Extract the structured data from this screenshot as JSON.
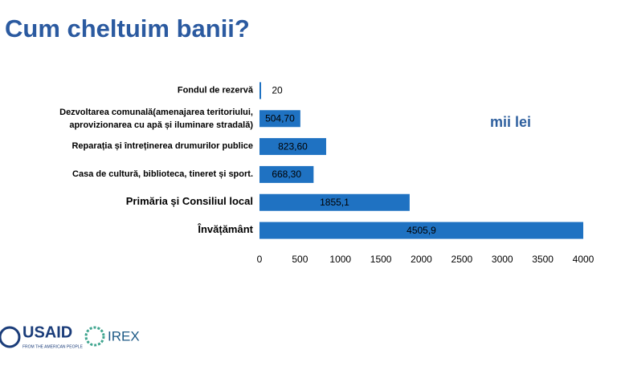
{
  "chart_data": {
    "type": "bar",
    "orientation": "horizontal",
    "title": "Cum cheltuim banii?",
    "categories": [
      "Fondul de rezervă",
      [
        "Dezvoltarea comunală(amenajarea  teritoriului,",
        "aprovizionarea  cu apă și iluminare stradală)"
      ],
      "Reparația și întreținerea drumurilor publice",
      "Casa de cultură, biblioteca,  tineret și sport.",
      "Primăria și Consiliul local",
      "Învățământ"
    ],
    "values": [
      20,
      504.7,
      823.6,
      668.3,
      1855.1,
      4505.9
    ],
    "value_labels": [
      "20",
      "504,70",
      "823,60",
      "668,30",
      "1855,1",
      "4505,9"
    ],
    "color": "#1f72c2",
    "xlim": [
      0,
      4000
    ],
    "xticks": [
      0,
      500,
      1000,
      1500,
      2000,
      2500,
      3000,
      3500,
      4000
    ],
    "annotation": "mii lei"
  },
  "logos": {
    "usaid": "USAID",
    "usaid_tagline": "FROM THE AMERICAN PEOPLE",
    "irex": "IREX"
  }
}
